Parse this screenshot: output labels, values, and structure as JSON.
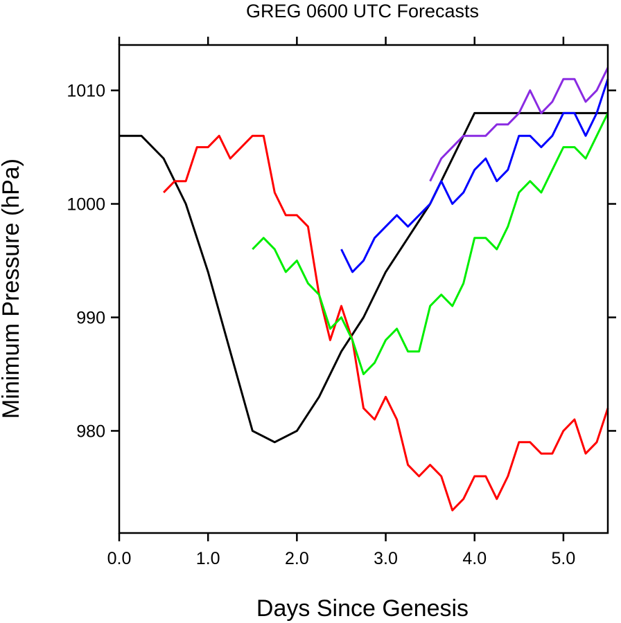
{
  "chart_data": {
    "type": "line",
    "title": "GREG 0600 UTC Forecasts",
    "xlabel": "Days Since Genesis",
    "ylabel": "Minimum Pressure (hPa)",
    "xlim": [
      0,
      5.5
    ],
    "ylim": [
      971,
      1014
    ],
    "xticks": [
      0,
      1,
      2,
      3,
      4,
      5
    ],
    "xtick_labels": [
      "0.0",
      "1.0",
      "2.0",
      "3.0",
      "4.0",
      "5.0"
    ],
    "yticks": [
      980,
      990,
      1000,
      1010
    ],
    "ytick_labels": [
      "980",
      "990",
      "1000",
      "1010"
    ],
    "grid": false,
    "legend": "none",
    "series": [
      {
        "color": "#000000",
        "x": [
          0,
          0.25,
          0.5,
          0.75,
          1.0,
          1.25,
          1.5,
          1.75,
          2.0,
          2.25,
          2.5,
          2.75,
          3.0,
          3.25,
          3.5,
          3.75,
          4.0,
          4.25,
          4.5,
          4.75,
          5.0,
          5.25,
          5.5
        ],
        "y": [
          1006,
          1006,
          1004,
          1000,
          994,
          987,
          980,
          979,
          980,
          983,
          987,
          990,
          994,
          997,
          1000,
          1004,
          1008,
          1008,
          1008,
          1008,
          1008,
          1008,
          1008
        ]
      },
      {
        "color": "#ff0000",
        "x": [
          0.5,
          0.625,
          0.75,
          0.875,
          1.0,
          1.125,
          1.25,
          1.375,
          1.5,
          1.625,
          1.75,
          1.875,
          2.0,
          2.125,
          2.25,
          2.375,
          2.5,
          2.625,
          2.75,
          2.875,
          3.0,
          3.125,
          3.25,
          3.375,
          3.5,
          3.625,
          3.75,
          3.875,
          4.0,
          4.125,
          4.25,
          4.375,
          4.5,
          4.625,
          4.75,
          4.875,
          5.0,
          5.125,
          5.25,
          5.375,
          5.5
        ],
        "y": [
          1001,
          1002,
          1002,
          1005,
          1005,
          1006,
          1004,
          1005,
          1006,
          1006,
          1001,
          999,
          999,
          998,
          992,
          988,
          991,
          988,
          982,
          981,
          983,
          981,
          977,
          976,
          977,
          976,
          973,
          974,
          976,
          976,
          974,
          976,
          979,
          979,
          978,
          978,
          980,
          981,
          978,
          979,
          982
        ]
      },
      {
        "color": "#00ee00",
        "x": [
          1.5,
          1.625,
          1.75,
          1.875,
          2.0,
          2.125,
          2.25,
          2.375,
          2.5,
          2.625,
          2.75,
          2.875,
          3.0,
          3.125,
          3.25,
          3.375,
          3.5,
          3.625,
          3.75,
          3.875,
          4.0,
          4.125,
          4.25,
          4.375,
          4.5,
          4.625,
          4.75,
          4.875,
          5.0,
          5.125,
          5.25,
          5.375,
          5.5
        ],
        "y": [
          996,
          997,
          996,
          994,
          995,
          993,
          992,
          989,
          990,
          988,
          985,
          986,
          988,
          989,
          987,
          987,
          991,
          992,
          991,
          993,
          997,
          997,
          996,
          998,
          1001,
          1002,
          1001,
          1003,
          1005,
          1005,
          1004,
          1006,
          1008
        ]
      },
      {
        "color": "#0000ff",
        "x": [
          2.5,
          2.625,
          2.75,
          2.875,
          3.0,
          3.125,
          3.25,
          3.375,
          3.5,
          3.625,
          3.75,
          3.875,
          4.0,
          4.125,
          4.25,
          4.375,
          4.5,
          4.625,
          4.75,
          4.875,
          5.0,
          5.125,
          5.25,
          5.375,
          5.5
        ],
        "y": [
          996,
          994,
          995,
          997,
          998,
          999,
          998,
          999,
          1000,
          1002,
          1000,
          1001,
          1003,
          1004,
          1002,
          1003,
          1006,
          1006,
          1005,
          1006,
          1008,
          1008,
          1006,
          1008,
          1011
        ]
      },
      {
        "color": "#8a2be2",
        "x": [
          3.5,
          3.625,
          3.75,
          3.875,
          4.0,
          4.125,
          4.25,
          4.375,
          4.5,
          4.625,
          4.75,
          4.875,
          5.0,
          5.125,
          5.25,
          5.375,
          5.5
        ],
        "y": [
          1002,
          1004,
          1005,
          1006,
          1006,
          1006,
          1007,
          1007,
          1008,
          1010,
          1008,
          1009,
          1011,
          1011,
          1009,
          1010,
          1012
        ]
      }
    ]
  }
}
